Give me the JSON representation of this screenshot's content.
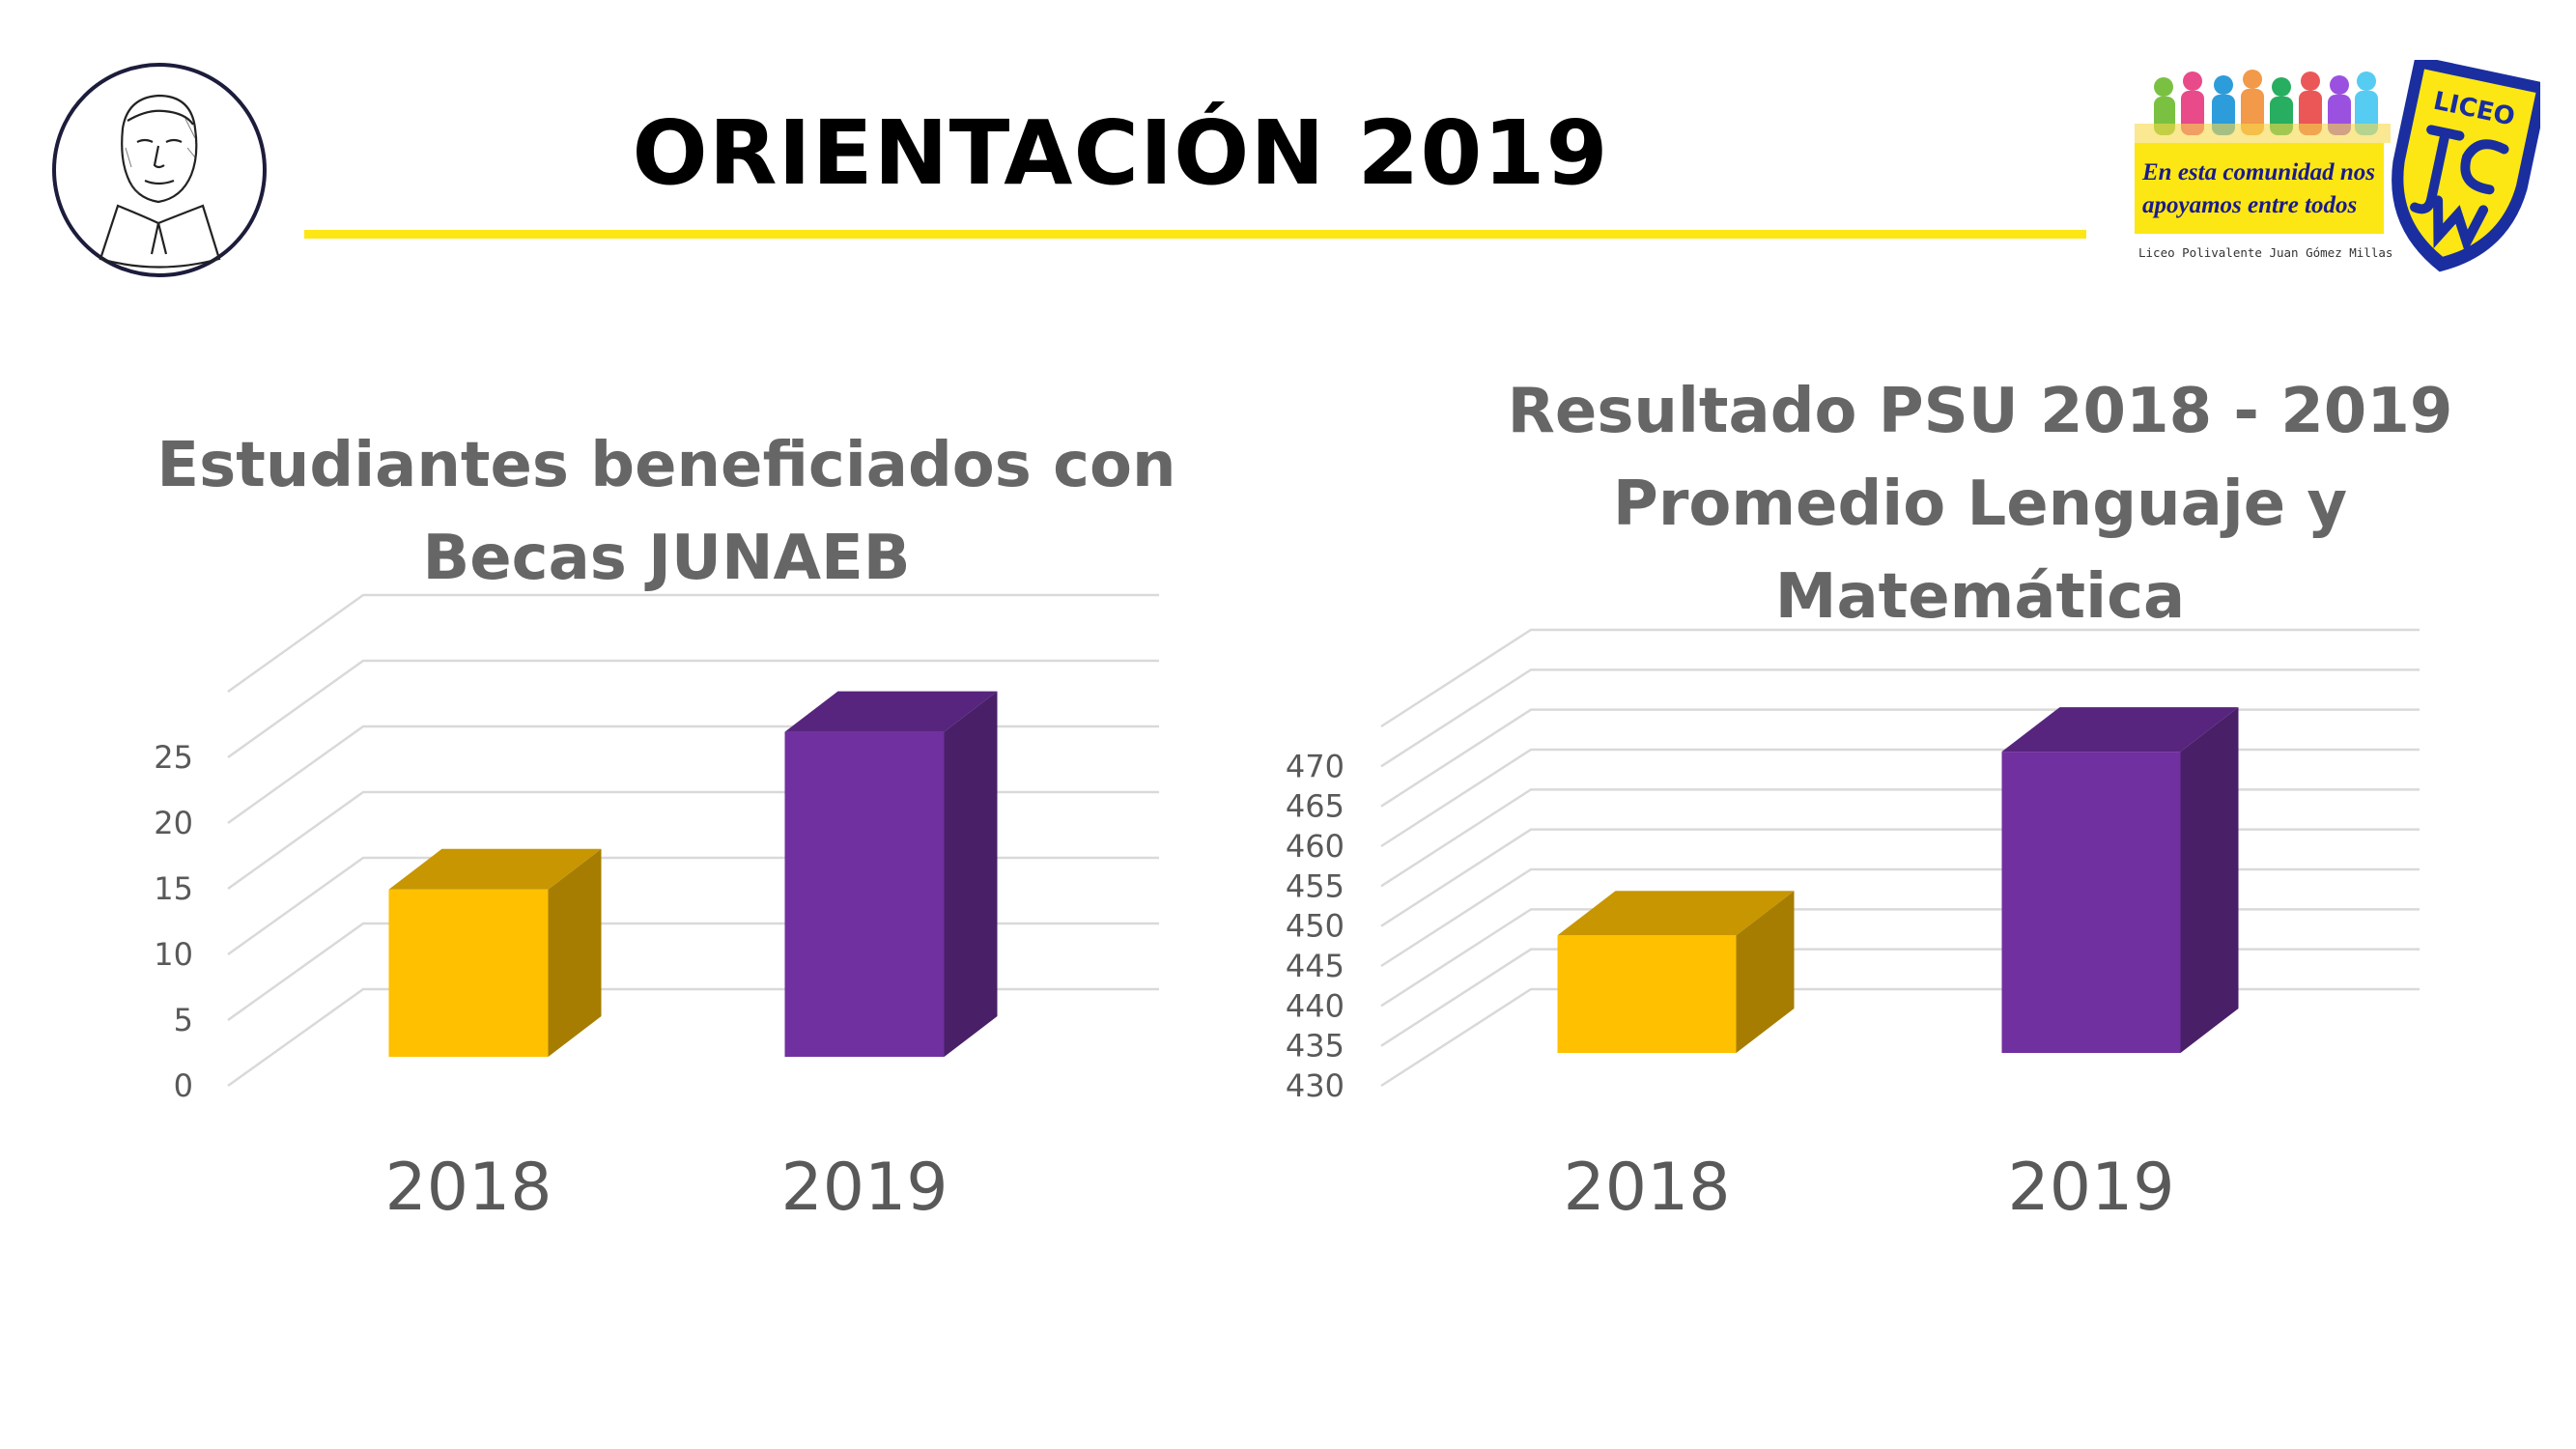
{
  "header": {
    "title": "ORIENTACIÓN 2019",
    "accent_color": "#fce714"
  },
  "logos": {
    "left_icon": "portrait-seal-icon",
    "right_icon": "liceo-jgm-crest-icon",
    "right_text_line1": "En esta comunidad nos",
    "right_text_line2": "apoyamos entre todos",
    "right_caption": "Liceo Polivalente Juan Gómez Millas",
    "crest_text": "LICEO"
  },
  "chart_data": [
    {
      "type": "bar",
      "title_line1": "Estudiantes beneficiados con",
      "title_line2": "Becas JUNAEB",
      "categories": [
        "2018",
        "2019"
      ],
      "values": [
        12,
        24
      ],
      "ylim": [
        0,
        30
      ],
      "yticks": [
        0,
        5,
        10,
        15,
        20,
        25
      ],
      "grid": true,
      "bar_colors": [
        "#ffc000",
        "#7030a0"
      ]
    },
    {
      "type": "bar",
      "title_line1": "Resultado PSU 2018 - 2019",
      "title_line2": "Promedio Lenguaje y Matemática",
      "categories": [
        "2018",
        "2019"
      ],
      "values": [
        444,
        467
      ],
      "ylim": [
        430,
        475
      ],
      "yticks": [
        430,
        435,
        440,
        445,
        450,
        455,
        460,
        465,
        470
      ],
      "grid": true,
      "bar_colors": [
        "#ffc000",
        "#7030a0"
      ]
    }
  ]
}
